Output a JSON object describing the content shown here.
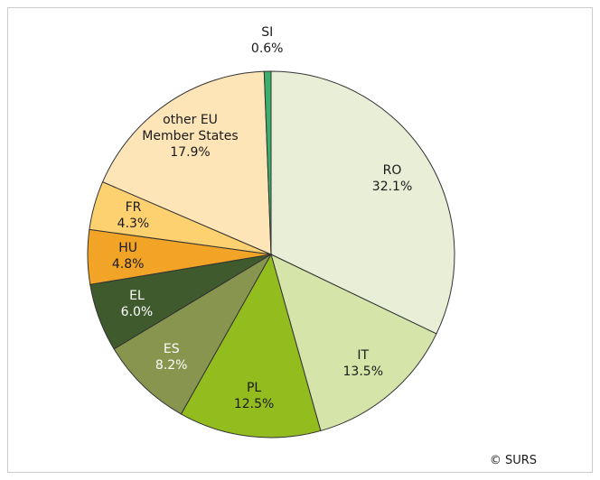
{
  "chart_data": {
    "type": "pie",
    "categories": [
      "RO",
      "IT",
      "PL",
      "ES",
      "EL",
      "HU",
      "FR",
      "other EU\nMember States",
      "SI"
    ],
    "values": [
      32.1,
      13.5,
      12.5,
      8.2,
      6.0,
      4.8,
      4.3,
      17.9,
      0.6
    ],
    "value_labels": [
      "32.1%",
      "13.5%",
      "12.5%",
      "8.2%",
      "6.0%",
      "4.8%",
      "4.3%",
      "17.9%",
      "0.6%"
    ],
    "colors": [
      "#e9eed7",
      "#d5e4a8",
      "#93bd1f",
      "#87954f",
      "#3f5b2d",
      "#f1a426",
      "#fdd170",
      "#fde5b8",
      "#3bb06b"
    ],
    "label_colors": [
      "#1a1a1a",
      "#1a1a1a",
      "#1a1a1a",
      "#ffffff",
      "#ffffff",
      "#1a1a1a",
      "#1a1a1a",
      "#1a1a1a",
      "#1a1a1a"
    ],
    "source": "© SURS"
  }
}
